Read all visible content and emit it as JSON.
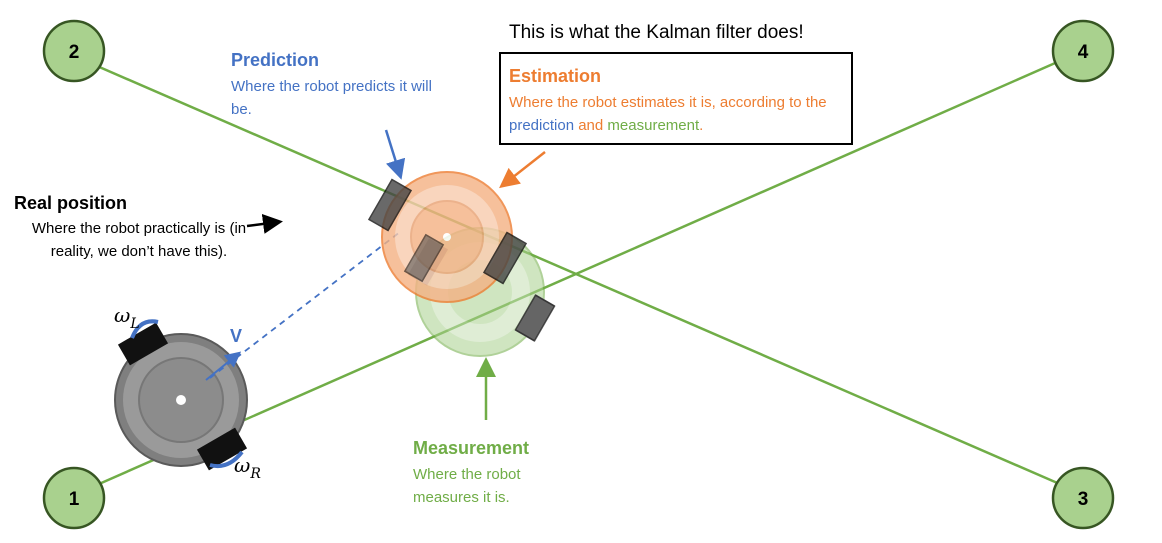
{
  "header": {
    "caption": "This is what the Kalman filter does!"
  },
  "estimation": {
    "title": "Estimation",
    "desc_before": "Where the robot estimates it is, according to the ",
    "desc_prediction_word": "prediction",
    "desc_and": " and ",
    "desc_measurement_word": "measurement",
    "desc_end": "."
  },
  "prediction": {
    "title": "Prediction",
    "desc": "Where the robot predicts it will be."
  },
  "real_position": {
    "title": "Real position",
    "desc": "Where the robot practically is (in reality, we don’t have this)."
  },
  "measurement": {
    "title": "Measurement",
    "desc": "Where the robot measures it is."
  },
  "landmarks": [
    {
      "label": "1"
    },
    {
      "label": "2"
    },
    {
      "label": "3"
    },
    {
      "label": "4"
    }
  ],
  "robot_labels": {
    "omega_left": "ω",
    "omega_left_sub": "L",
    "omega_right": "ω",
    "omega_right_sub": "R",
    "velocity": "V"
  },
  "colors": {
    "prediction": "#4472C4",
    "estimation": "#ED7D31",
    "measurement": "#70AD47",
    "landmark_fill": "#A9D18E",
    "landmark_stroke": "#375623",
    "robot_body": "#7F7F7F"
  }
}
